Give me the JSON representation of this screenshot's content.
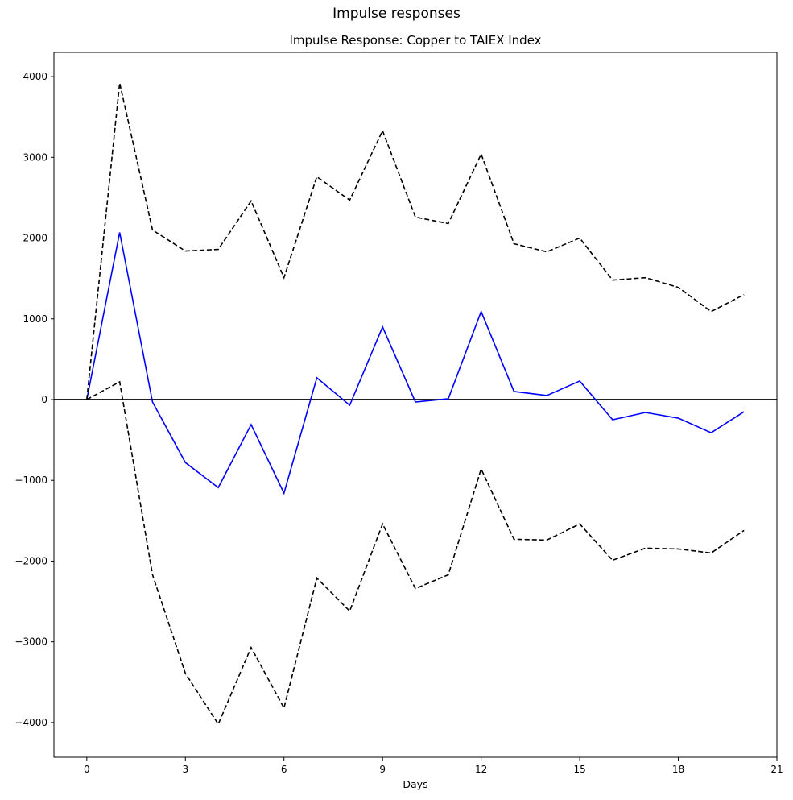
{
  "chart_data": {
    "type": "line",
    "suptitle": "Impulse responses",
    "title": "Impulse Response: Copper to TAIEX Index",
    "xlabel": "Days",
    "ylabel": "",
    "xlim": [
      -1,
      21
    ],
    "ylim": [
      -4430,
      4300
    ],
    "xticks": [
      0,
      3,
      6,
      9,
      12,
      15,
      18,
      21
    ],
    "yticks": [
      -4000,
      -3000,
      -2000,
      -1000,
      0,
      1000,
      2000,
      3000,
      4000
    ],
    "grid": false,
    "zero_line": true,
    "x": [
      0,
      1,
      2,
      3,
      4,
      5,
      6,
      7,
      8,
      9,
      10,
      11,
      12,
      13,
      14,
      15,
      16,
      17,
      18,
      19,
      20
    ],
    "series": [
      {
        "role": "response",
        "color": "#0000ff",
        "dash": "solid",
        "values": [
          0,
          2070,
          -30,
          -780,
          -1090,
          -310,
          -1160,
          270,
          -70,
          900,
          -30,
          10,
          1090,
          100,
          50,
          230,
          -250,
          -160,
          -230,
          -410,
          -150
        ]
      },
      {
        "role": "upper-bound",
        "color": "#000000",
        "dash": "dashed",
        "values": [
          0,
          3920,
          2100,
          1840,
          1860,
          2460,
          1510,
          2760,
          2470,
          3330,
          2260,
          2180,
          3040,
          1930,
          1830,
          2000,
          1480,
          1510,
          1390,
          1090,
          1300
        ]
      },
      {
        "role": "lower-bound",
        "color": "#000000",
        "dash": "dashed",
        "values": [
          0,
          220,
          -2170,
          -3390,
          -4020,
          -3070,
          -3820,
          -2210,
          -2620,
          -1540,
          -2340,
          -2170,
          -860,
          -1730,
          -1740,
          -1540,
          -1990,
          -1840,
          -1850,
          -1900,
          -1620
        ]
      }
    ]
  }
}
